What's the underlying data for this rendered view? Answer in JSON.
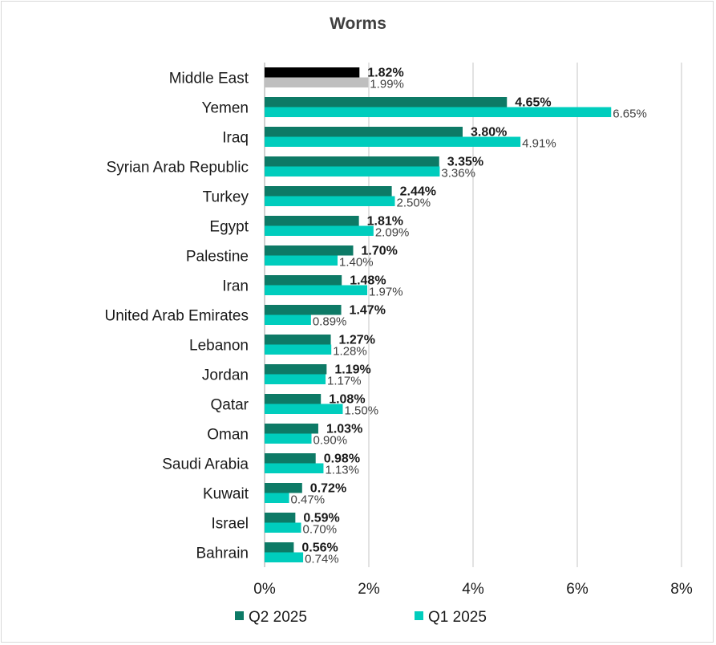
{
  "chart_data": {
    "type": "bar",
    "orientation": "horizontal",
    "title": "Worms",
    "categories": [
      "Middle East",
      "Yemen",
      "Iraq",
      "Syrian Arab Republic",
      "Turkey",
      "Egypt",
      "Palestine",
      "Iran",
      "United Arab Emirates",
      "Lebanon",
      "Jordan",
      "Qatar",
      "Oman",
      "Saudi Arabia",
      "Kuwait",
      "Israel",
      "Bahrain"
    ],
    "series": [
      {
        "name": "Q2 2025",
        "color": "#0d7a66",
        "highlight_color": "#000000",
        "values": [
          1.82,
          4.65,
          3.8,
          3.35,
          2.44,
          1.81,
          1.7,
          1.48,
          1.47,
          1.27,
          1.19,
          1.08,
          1.03,
          0.98,
          0.72,
          0.59,
          0.56
        ],
        "labels": [
          "1.82%",
          "4.65%",
          "3.80%",
          "3.35%",
          "2.44%",
          "1.81%",
          "1.70%",
          "1.48%",
          "1.47%",
          "1.27%",
          "1.19%",
          "1.08%",
          "1.03%",
          "0.98%",
          "0.72%",
          "0.59%",
          "0.56%"
        ]
      },
      {
        "name": "Q1 2025",
        "color": "#00cdbd",
        "highlight_color": "#bfbfbf",
        "values": [
          1.99,
          6.65,
          4.91,
          3.36,
          2.5,
          2.09,
          1.4,
          1.97,
          0.89,
          1.28,
          1.17,
          1.5,
          0.9,
          1.13,
          0.47,
          0.7,
          0.74
        ],
        "labels": [
          "1.99%",
          "6.65%",
          "4.91%",
          "3.36%",
          "2.50%",
          "2.09%",
          "1.40%",
          "1.97%",
          "0.89%",
          "1.28%",
          "1.17%",
          "1.50%",
          "0.90%",
          "1.13%",
          "0.47%",
          "0.70%",
          "0.74%"
        ]
      }
    ],
    "xlim": [
      0,
      8
    ],
    "xticks": [
      0,
      2,
      4,
      6,
      8
    ],
    "xtick_labels": [
      "0%",
      "2%",
      "4%",
      "6%",
      "8%"
    ],
    "grid": true,
    "legend_position": "bottom"
  }
}
